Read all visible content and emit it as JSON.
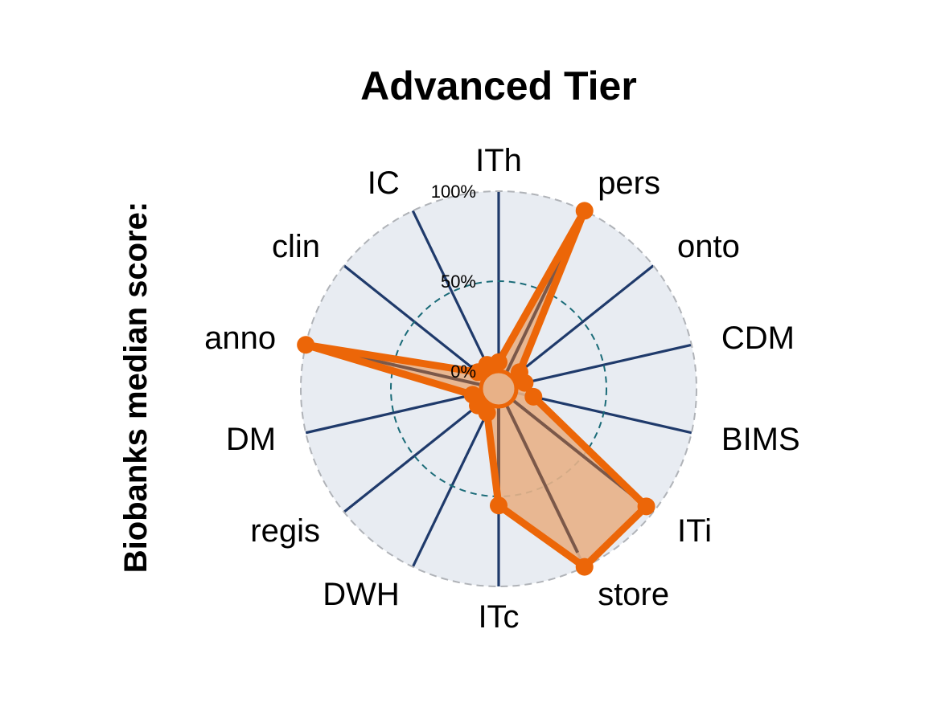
{
  "chart_data": {
    "type": "radar",
    "title": "Advanced Tier",
    "ylabel": "Biobanks median score:",
    "categories": [
      "ITh",
      "pers",
      "onto",
      "CDM",
      "BIMS",
      "ITi",
      "store",
      "ITc",
      "DWH",
      "regis",
      "DM",
      "anno",
      "clin",
      "IC"
    ],
    "values": [
      5,
      100,
      5,
      5,
      10,
      95,
      100,
      55,
      5,
      5,
      5,
      100,
      5,
      5
    ],
    "r_ticks": [
      0,
      50,
      100
    ],
    "r_tick_labels": [
      "0%",
      "50%",
      "100%"
    ],
    "ylim": [
      0,
      100
    ],
    "colors": {
      "panel": "#e8ecf2",
      "spokes": "#1f3a6b",
      "outer_ring": "#b0b3b8",
      "mid_ring": "#1a6b78",
      "series_line": "#ec6608",
      "series_fill": "#e8b187",
      "inner_line": "#6b4a3e"
    }
  }
}
